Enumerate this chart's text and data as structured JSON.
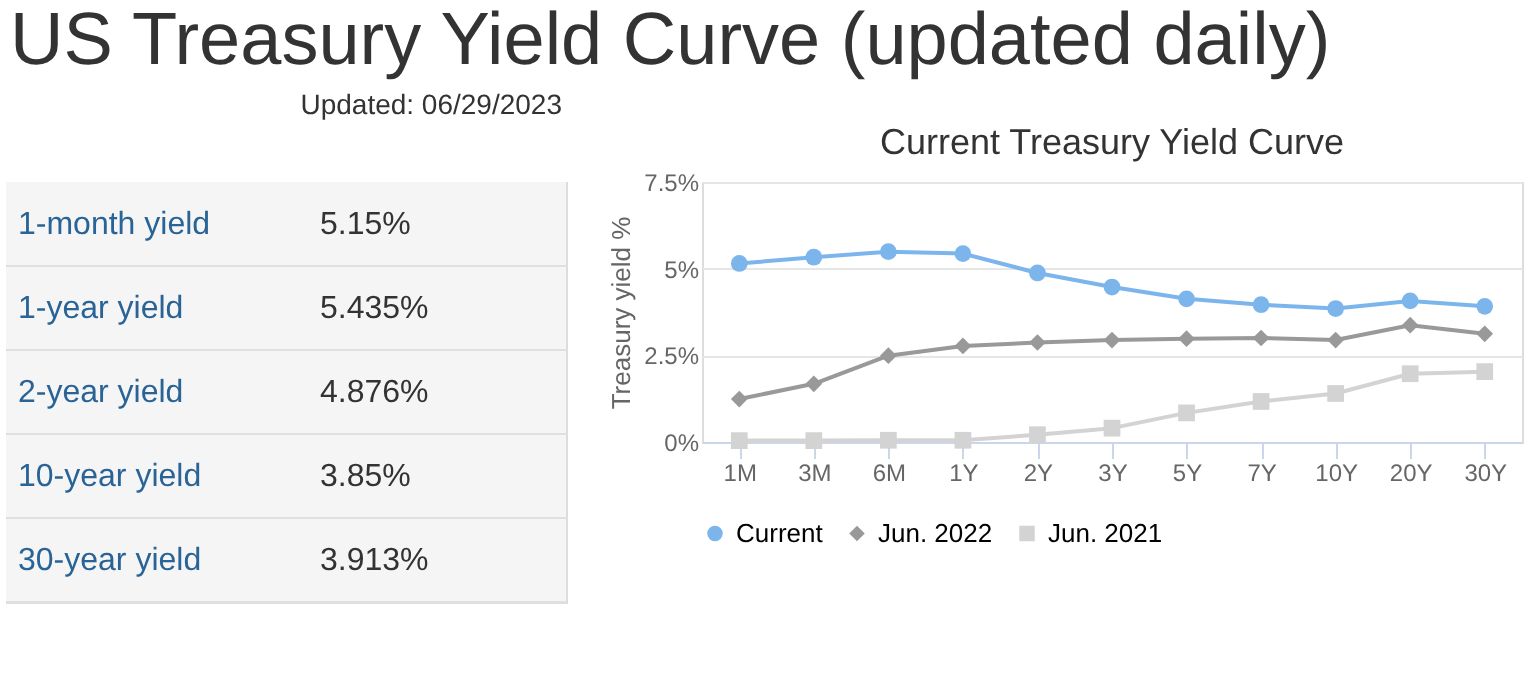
{
  "chart_data": [
    {
      "type": "other",
      "title": "US Treasury Yield Curve (updated daily)",
      "subtitle": "Updated: 06/29/2023",
      "categories": [
        "1-month yield",
        "1-year yield",
        "2-year yield",
        "10-year yield",
        "30-year yield"
      ],
      "value_labels": [
        "5.15%",
        "5.435%",
        "4.876%",
        "3.85%",
        "3.913%"
      ]
    },
    {
      "type": "line",
      "title": "Current Treasury Yield Curve",
      "ylabel": "Treasury yield %",
      "categories": [
        "1M",
        "3M",
        "6M",
        "1Y",
        "2Y",
        "3Y",
        "5Y",
        "7Y",
        "10Y",
        "20Y",
        "30Y"
      ],
      "series": [
        {
          "name": "Current",
          "color": "#7cb5ec",
          "marker": "circle",
          "values": [
            5.15,
            5.33,
            5.49,
            5.435,
            4.876,
            4.47,
            4.13,
            3.96,
            3.85,
            4.07,
            3.913
          ]
        },
        {
          "name": "Jun. 2022",
          "color": "#999999",
          "marker": "diamond",
          "values": [
            1.24,
            1.68,
            2.49,
            2.77,
            2.87,
            2.94,
            2.98,
            3.0,
            2.94,
            3.37,
            3.12
          ]
        },
        {
          "name": "Jun. 2021",
          "color": "#d3d3d3",
          "marker": "square",
          "values": [
            0.04,
            0.04,
            0.05,
            0.05,
            0.21,
            0.4,
            0.84,
            1.17,
            1.4,
            1.97,
            2.03
          ]
        }
      ],
      "ylim": [
        0,
        7.5
      ],
      "yticks": [
        {
          "value": 0,
          "label": "0%"
        },
        {
          "value": 2.5,
          "label": "2.5%"
        },
        {
          "value": 5,
          "label": "5%"
        },
        {
          "value": 7.5,
          "label": "7.5%"
        }
      ],
      "grid": "y",
      "legend": "bottom"
    }
  ]
}
